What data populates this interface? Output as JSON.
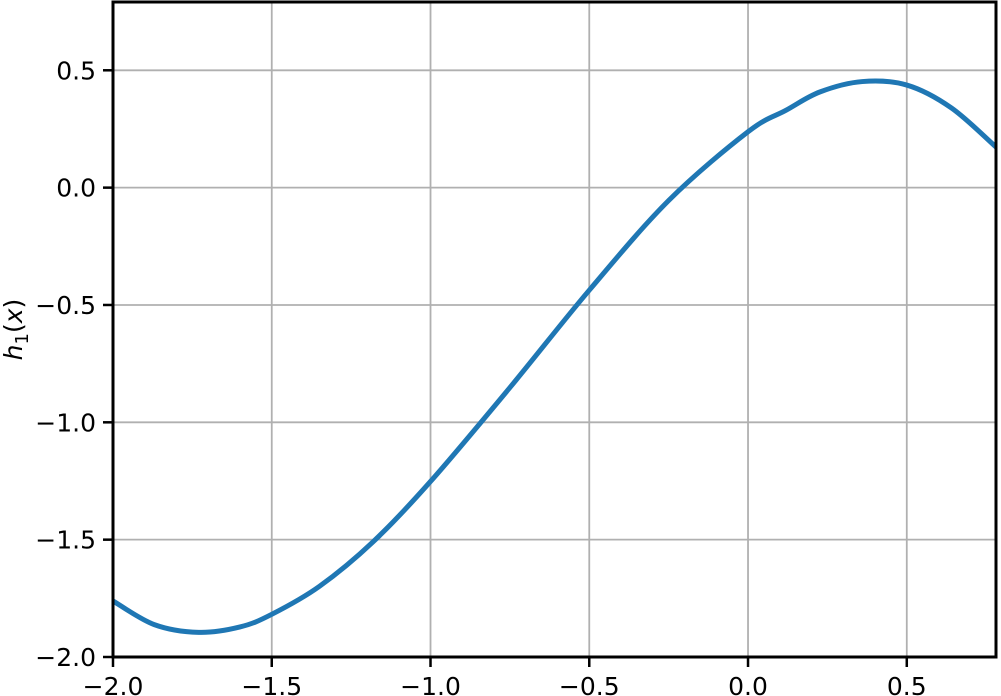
{
  "figure": {
    "background": "#ffffff"
  },
  "chart_data": {
    "type": "line",
    "title": "",
    "xlabel": "",
    "ylabel": "h1(x)",
    "ylabel_parts": [
      {
        "text": "h",
        "italic": true,
        "sub": false
      },
      {
        "text": "1",
        "italic": false,
        "sub": true
      },
      {
        "text": "(",
        "italic": false,
        "sub": false
      },
      {
        "text": "x",
        "italic": true,
        "sub": false
      },
      {
        "text": ")",
        "italic": false,
        "sub": false
      }
    ],
    "xlim": [
      -2.0,
      0.781
    ],
    "ylim": [
      -2.0,
      0.791
    ],
    "grid": true,
    "grid_color": "#b0b0b0",
    "axes_color": "#000000",
    "tick_color": "#000000",
    "ticks": {
      "x": [
        -2.0,
        -1.5,
        -1.0,
        -0.5,
        0.0,
        0.5
      ],
      "y": [
        0.5,
        0.0,
        -0.5,
        -1.0,
        -1.5,
        -2.0
      ]
    },
    "tick_labels": {
      "x": [
        "−2.0",
        "−1.5",
        "−1.0",
        "−0.5",
        "0.0",
        "0.5"
      ],
      "y": [
        "0.5",
        "0.0",
        "−0.5",
        "−1.0",
        "−1.5",
        "−2.0"
      ]
    },
    "legend": null,
    "series": [
      {
        "name": "h_1(x)",
        "color": "#1f77b4",
        "x": [
          -2.0,
          -1.87,
          -1.73,
          -1.6,
          -1.5,
          -1.35,
          -1.18,
          -1.0,
          -0.75,
          -0.5,
          -0.25,
          0.0,
          0.12,
          0.227,
          0.36,
          0.5,
          0.64,
          0.781
        ],
        "y": [
          -1.761,
          -1.862,
          -1.895,
          -1.872,
          -1.818,
          -1.699,
          -1.508,
          -1.252,
          -0.852,
          -0.437,
          -0.055,
          0.238,
          0.33,
          0.408,
          0.452,
          0.437,
          0.34,
          0.173
        ],
        "minimum": {
          "x": -1.73,
          "y": -1.895
        },
        "maximum": {
          "x": 0.36,
          "y": 0.452
        }
      }
    ]
  }
}
